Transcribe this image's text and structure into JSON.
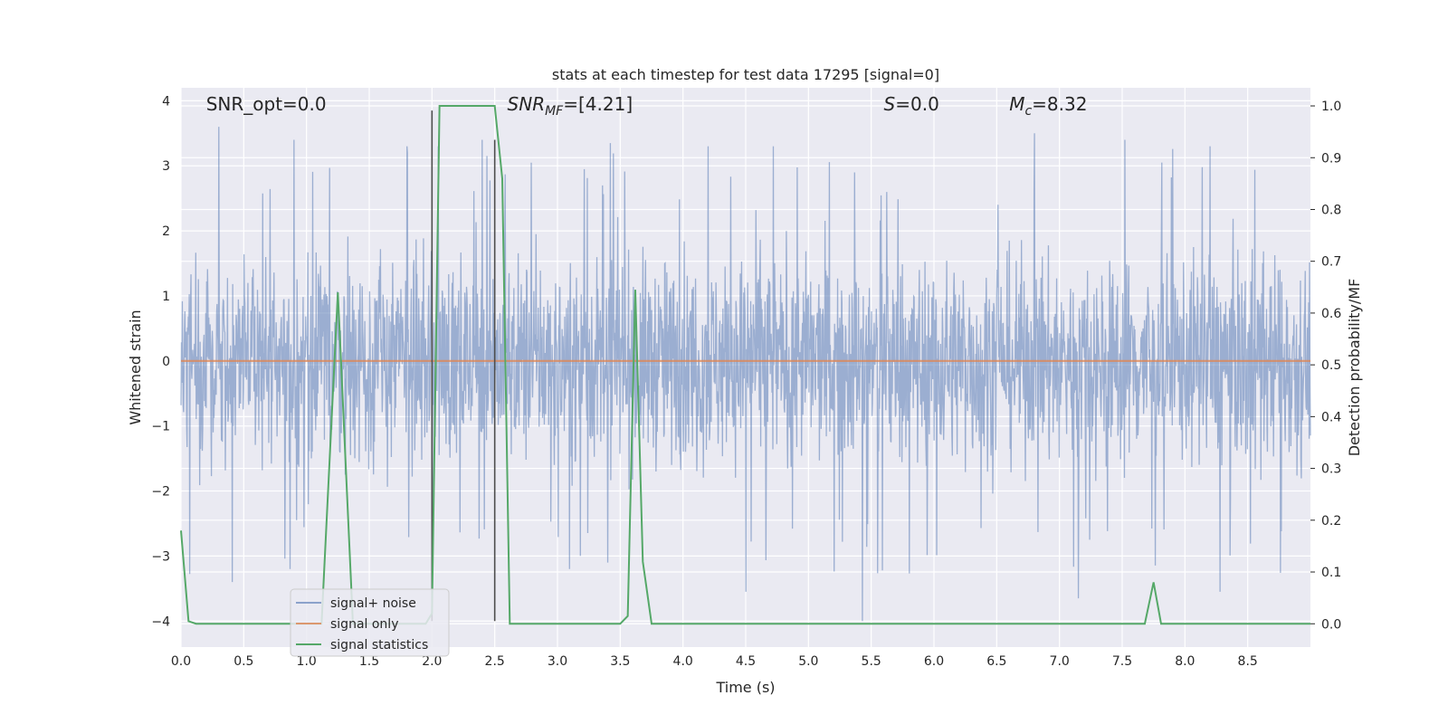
{
  "chart_data": {
    "type": "line",
    "title": "stats at each timestep for test data 17295 [signal=0]",
    "xlabel": "Time (s)",
    "ylabel_left": "Whitened strain",
    "ylabel_right": "Detection probability/MF",
    "xlim": [
      0,
      9.0
    ],
    "ylim_left": [
      -4.4,
      4.2
    ],
    "ylim_right": [
      -0.045,
      1.035
    ],
    "x_ticks": [
      0.0,
      0.5,
      1.0,
      1.5,
      2.0,
      2.5,
      3.0,
      3.5,
      4.0,
      4.5,
      5.0,
      5.5,
      6.0,
      6.5,
      7.0,
      7.5,
      8.0,
      8.5
    ],
    "x_tick_labels": [
      "0.0",
      "0.5",
      "1.0",
      "1.5",
      "2.0",
      "2.5",
      "3.0",
      "3.5",
      "4.0",
      "4.5",
      "5.0",
      "5.5",
      "6.0",
      "6.5",
      "7.0",
      "7.5",
      "8.0",
      "8.5"
    ],
    "y_left_ticks": [
      -4,
      -3,
      -2,
      -1,
      0,
      1,
      2,
      3,
      4
    ],
    "y_left_tick_labels": [
      "−4",
      "−3",
      "−2",
      "−1",
      "0",
      "1",
      "2",
      "3",
      "4"
    ],
    "y_right_ticks": [
      0.0,
      0.1,
      0.2,
      0.3,
      0.4,
      0.5,
      0.6,
      0.7,
      0.8,
      0.9,
      1.0
    ],
    "y_right_tick_labels": [
      "0.0",
      "0.1",
      "0.2",
      "0.3",
      "0.4",
      "0.5",
      "0.6",
      "0.7",
      "0.8",
      "0.9",
      "1.0"
    ],
    "grid": true,
    "legend_position": "bottom-left",
    "series": [
      {
        "name": "signal+ noise",
        "axis": "left",
        "color": "#4c72b0",
        "style": "dense noise trace, amplitude about ±2 with spikes to about ±3.6, one excursion down to -4.0 near 5.43 s",
        "notable_peaks": [
          [
            0.3,
            3.6
          ],
          [
            0.9,
            3.4
          ],
          [
            1.8,
            3.3
          ],
          [
            2.05,
            3.3
          ],
          [
            2.4,
            3.4
          ],
          [
            3.42,
            3.35
          ],
          [
            4.2,
            3.3
          ],
          [
            4.72,
            3.3
          ],
          [
            6.8,
            3.5
          ],
          [
            7.52,
            3.4
          ],
          [
            8.2,
            3.3
          ]
        ],
        "notable_troughs": [
          [
            0.41,
            -3.4
          ],
          [
            0.87,
            -3.2
          ],
          [
            2.0,
            -3.4
          ],
          [
            3.4,
            -3.1
          ],
          [
            4.5,
            -3.55
          ],
          [
            5.43,
            -4.0
          ],
          [
            7.15,
            -3.65
          ],
          [
            8.28,
            -3.55
          ]
        ]
      },
      {
        "name": "signal only",
        "axis": "left",
        "color": "#dd8452",
        "x": [
          0.0,
          9.0
        ],
        "y": [
          0.0,
          0.0
        ]
      },
      {
        "name": "signal statistics",
        "axis": "right",
        "color": "#55a868",
        "x": [
          0.0,
          0.06,
          0.12,
          0.19,
          1.0,
          1.12,
          1.25,
          1.37,
          1.45,
          1.95,
          2.0,
          2.06,
          2.12,
          2.5,
          2.56,
          2.62,
          2.68,
          2.75,
          3.0,
          3.5,
          3.56,
          3.62,
          3.68,
          3.75,
          7.68,
          7.75,
          7.81,
          7.87,
          9.0
        ],
        "y": [
          0.18,
          0.005,
          0.0,
          0.0,
          0.0,
          0.0,
          0.64,
          0.0,
          0.0,
          0.0,
          0.02,
          1.0,
          1.0,
          1.0,
          0.86,
          0.0,
          0.0,
          0.0,
          0.0,
          0.0,
          0.015,
          0.645,
          0.12,
          0.0,
          0.0,
          0.08,
          0.0,
          0.0,
          0.0
        ]
      }
    ],
    "vertical_lines": [
      {
        "x": 2.0,
        "y_from": -4.0,
        "y_to": 3.85,
        "color": "#4d4d4d"
      },
      {
        "x": 2.5,
        "y_from": -4.0,
        "y_to": 3.4,
        "color": "#4d4d4d"
      }
    ],
    "annotations": [
      {
        "label": "SNR_opt=0.0",
        "x": 0.2,
        "y": 3.95
      },
      {
        "label": "SNR_MF=[4.21]",
        "main": "SNR",
        "sub": "MF",
        "value": "=[4.21]",
        "x": 2.6,
        "y": 3.95
      },
      {
        "label": "S=0.0",
        "main": "S",
        "value": "=0.0",
        "x": 5.6,
        "y": 3.95
      },
      {
        "label": "M_c=8.32",
        "main": "M",
        "sub": "c",
        "value": "=8.32",
        "x": 6.6,
        "y": 3.95
      }
    ]
  }
}
